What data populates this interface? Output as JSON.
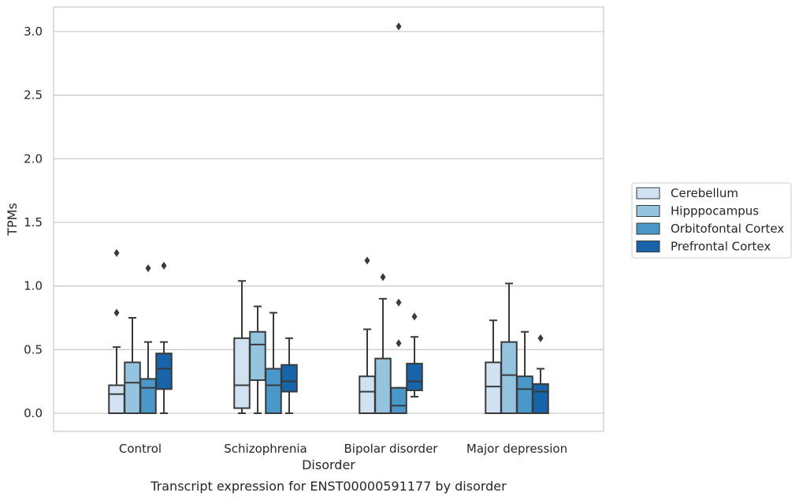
{
  "chart_data": {
    "type": "box",
    "title": "",
    "caption": "Transcript expression for ENST00000591177 by disorder",
    "xlabel": "Disorder",
    "ylabel": "TPMs",
    "ylim": [
      -0.15,
      3.2
    ],
    "yticks": [
      "0.0",
      "0.5",
      "1.0",
      "1.5",
      "2.0",
      "2.5",
      "3.0"
    ],
    "grid": "horizontal",
    "legend_position": "right",
    "categories": [
      "Control",
      "Schizophrenia",
      "Bipolar disorder",
      "Major depression"
    ],
    "series": [
      {
        "name": "Cerebellum",
        "color": "#d0e1f2",
        "boxes": [
          {
            "whislo": 0.0,
            "q1": 0.0,
            "med": 0.15,
            "q3": 0.22,
            "whishi": 0.52,
            "fliers": [
              0.79,
              1.26
            ]
          },
          {
            "whislo": 0.0,
            "q1": 0.04,
            "med": 0.22,
            "q3": 0.59,
            "whishi": 1.04,
            "fliers": []
          },
          {
            "whislo": 0.0,
            "q1": 0.0,
            "med": 0.17,
            "q3": 0.29,
            "whishi": 0.66,
            "fliers": [
              1.2
            ]
          },
          {
            "whislo": 0.0,
            "q1": 0.0,
            "med": 0.21,
            "q3": 0.4,
            "whishi": 0.73,
            "fliers": []
          }
        ]
      },
      {
        "name": "Hipppocampus",
        "color": "#94c4df",
        "boxes": [
          {
            "whislo": 0.0,
            "q1": 0.0,
            "med": 0.24,
            "q3": 0.4,
            "whishi": 0.75,
            "fliers": []
          },
          {
            "whislo": 0.0,
            "q1": 0.26,
            "med": 0.54,
            "q3": 0.64,
            "whishi": 0.84,
            "fliers": []
          },
          {
            "whislo": 0.0,
            "q1": 0.0,
            "med": 0.0,
            "q3": 0.43,
            "whishi": 0.9,
            "fliers": [
              1.07
            ]
          },
          {
            "whislo": 0.0,
            "q1": 0.0,
            "med": 0.3,
            "q3": 0.56,
            "whishi": 1.02,
            "fliers": []
          }
        ]
      },
      {
        "name": "Orbitofontal Cortex",
        "color": "#4a98c9",
        "boxes": [
          {
            "whislo": 0.0,
            "q1": 0.0,
            "med": 0.2,
            "q3": 0.27,
            "whishi": 0.56,
            "fliers": [
              1.14
            ]
          },
          {
            "whislo": 0.0,
            "q1": 0.0,
            "med": 0.22,
            "q3": 0.35,
            "whishi": 0.79,
            "fliers": []
          },
          {
            "whislo": 0.0,
            "q1": 0.0,
            "med": 0.06,
            "q3": 0.2,
            "whishi": 0.2,
            "fliers": [
              0.55,
              0.87,
              3.04
            ]
          },
          {
            "whislo": 0.0,
            "q1": 0.0,
            "med": 0.19,
            "q3": 0.29,
            "whishi": 0.64,
            "fliers": []
          }
        ]
      },
      {
        "name": "Prefrontal Cortex",
        "color": "#1764ab",
        "boxes": [
          {
            "whislo": 0.0,
            "q1": 0.19,
            "med": 0.35,
            "q3": 0.47,
            "whishi": 0.56,
            "fliers": [
              1.16
            ]
          },
          {
            "whislo": 0.0,
            "q1": 0.17,
            "med": 0.25,
            "q3": 0.38,
            "whishi": 0.59,
            "fliers": []
          },
          {
            "whislo": 0.13,
            "q1": 0.18,
            "med": 0.25,
            "q3": 0.39,
            "whishi": 0.6,
            "fliers": [
              0.76
            ]
          },
          {
            "whislo": 0.0,
            "q1": 0.0,
            "med": 0.17,
            "q3": 0.23,
            "whishi": 0.35,
            "fliers": [
              0.59
            ]
          }
        ]
      }
    ]
  }
}
